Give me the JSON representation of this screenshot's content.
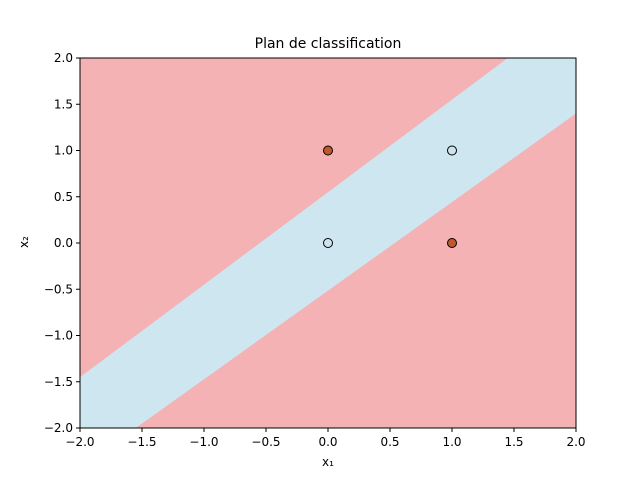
{
  "chart_data": {
    "type": "scatter",
    "title": "Plan de classification",
    "xlabel": "x₁",
    "ylabel": "x₂",
    "xlim": [
      -2,
      2
    ],
    "ylim": [
      -2,
      2
    ],
    "xticks": [
      "−2.0",
      "−1.5",
      "−1.0",
      "−0.5",
      "0.0",
      "0.5",
      "1.0",
      "1.5",
      "2.0"
    ],
    "yticks": [
      "−2.0",
      "−1.5",
      "−1.0",
      "−0.5",
      "0.0",
      "0.5",
      "1.0",
      "1.5",
      "2.0"
    ],
    "xtick_values": [
      -2,
      -1.5,
      -1,
      -0.5,
      0,
      0.5,
      1,
      1.5,
      2
    ],
    "ytick_values": [
      -2,
      -1.5,
      -1,
      -0.5,
      0,
      0.5,
      1,
      1.5,
      2
    ],
    "grid": false,
    "regions": {
      "background_class_color": "#f5b2b4",
      "band_class_color": "#cde6ef",
      "band_upper_boundary": [
        [
          -2,
          -1.45
        ],
        [
          1.45,
          2.0
        ],
        [
          2,
          2.0
        ]
      ],
      "band_upper_boundary_extra": [
        [
          2,
          1.88
        ]
      ],
      "band_lower_boundary": [
        [
          -1.55,
          -2.0
        ],
        [
          2,
          1.4
        ]
      ]
    },
    "points": [
      {
        "x": 0,
        "y": 0,
        "class": 0,
        "color": "#cfe3ee"
      },
      {
        "x": 1,
        "y": 1,
        "class": 0,
        "color": "#cfe3ee"
      },
      {
        "x": 0,
        "y": 1,
        "class": 1,
        "color": "#c0582a"
      },
      {
        "x": 1,
        "y": 0,
        "class": 1,
        "color": "#c0582a"
      }
    ]
  }
}
